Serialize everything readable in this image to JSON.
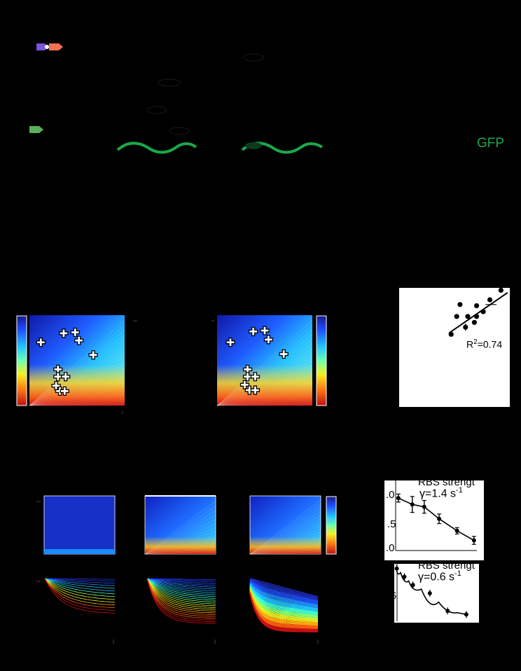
{
  "labels": {
    "gfp": "GFP",
    "r2": "R",
    "r2_sup": "2",
    "r2_value": "=0.74",
    "rbs_top": "RBS strengt",
    "gamma_top": "γ=1.4 s",
    "gamma_top_sup": "-1",
    "rbs_bottom": "RBS strengt",
    "gamma_bottom": "γ=0.6 s",
    "gamma_bottom_sup": "-1",
    "tick_10": ".0",
    "tick_05": ".5",
    "tick_00": ".0",
    "tick_5": "5"
  },
  "colors": {
    "gfp_green": "#1aa84a",
    "promoter_purple": "#7a55d6",
    "promoter_red": "#f07050",
    "promoter_green": "#5ab05a"
  },
  "chart_data": [
    {
      "type": "scatter",
      "panel": "heatmap-left",
      "colormap": "jet",
      "markers": "plus",
      "points": [
        [
          0.12,
          0.3
        ],
        [
          0.36,
          0.2
        ],
        [
          0.48,
          0.19
        ],
        [
          0.52,
          0.28
        ],
        [
          0.67,
          0.44
        ],
        [
          0.3,
          0.6
        ],
        [
          0.3,
          0.68
        ],
        [
          0.38,
          0.68
        ],
        [
          0.28,
          0.78
        ],
        [
          0.32,
          0.84
        ],
        [
          0.37,
          0.84
        ]
      ]
    },
    {
      "type": "scatter",
      "panel": "heatmap-right",
      "colormap": "jet",
      "markers": "plus",
      "points": [
        [
          0.14,
          0.3
        ],
        [
          0.38,
          0.18
        ],
        [
          0.5,
          0.17
        ],
        [
          0.54,
          0.27
        ],
        [
          0.7,
          0.43
        ],
        [
          0.32,
          0.6
        ],
        [
          0.32,
          0.68
        ],
        [
          0.4,
          0.68
        ],
        [
          0.29,
          0.77
        ],
        [
          0.34,
          0.83
        ],
        [
          0.4,
          0.83
        ]
      ]
    },
    {
      "type": "scatter",
      "panel": "correlation",
      "annotation": "R2=0.74",
      "points": [
        [
          0.47,
          0.39
        ],
        [
          0.55,
          0.14
        ],
        [
          0.62,
          0.24
        ],
        [
          0.7,
          0.24
        ],
        [
          0.76,
          0.2
        ],
        [
          0.82,
          0.1
        ],
        [
          0.7,
          0.15
        ],
        [
          0.6,
          0.33
        ],
        [
          0.68,
          0.29
        ],
        [
          0.52,
          0.24
        ],
        [
          0.92,
          0.02
        ]
      ],
      "fit_line": [
        [
          0.45,
          0.38
        ],
        [
          0.98,
          0.04
        ]
      ]
    },
    {
      "type": "line",
      "panel": "inset-top",
      "title": "RBS strengt",
      "annotation": "γ=1.4 s-1",
      "y_ticks": [
        ".0",
        ".5",
        ".0"
      ],
      "points": [
        [
          0.14,
          0.22
        ],
        [
          0.28,
          0.3
        ],
        [
          0.4,
          0.33
        ],
        [
          0.55,
          0.48
        ],
        [
          0.73,
          0.63
        ],
        [
          0.9,
          0.75
        ]
      ],
      "errors": [
        0.05,
        0.1,
        0.08,
        0.06,
        0.04,
        0.05
      ]
    },
    {
      "type": "line",
      "panel": "inset-bottom",
      "title": "RBS strengt",
      "annotation": "γ=0.6 s-1",
      "y_ticks": [
        "5"
      ],
      "points": [
        [
          0.03,
          0.08
        ],
        [
          0.12,
          0.22
        ],
        [
          0.22,
          0.36
        ],
        [
          0.42,
          0.5
        ],
        [
          0.63,
          0.8
        ],
        [
          0.85,
          0.86
        ]
      ]
    }
  ]
}
